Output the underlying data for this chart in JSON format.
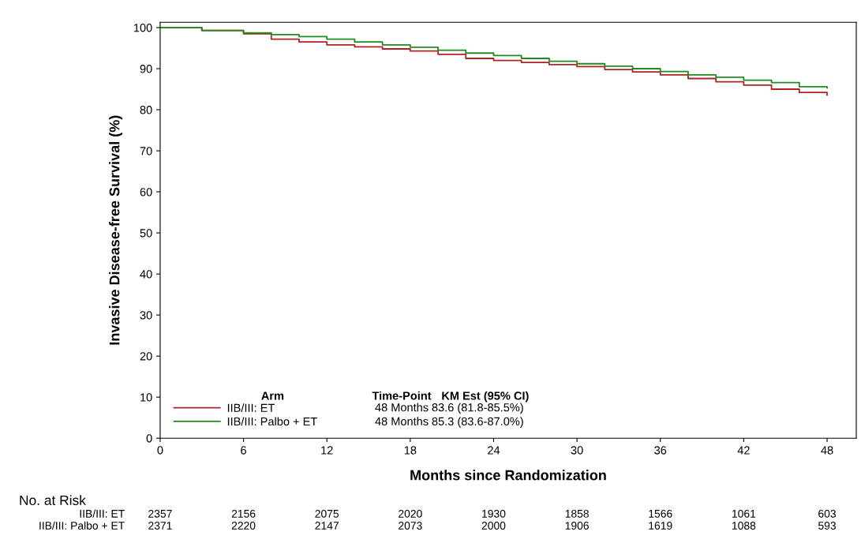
{
  "chart_data": {
    "type": "step",
    "xlabel": "Months since Randomization",
    "ylabel": "Invasive Disease-free Survival (%)",
    "xlim": [
      0,
      50.1
    ],
    "ylim": [
      0,
      101.3
    ],
    "xticks": [
      0,
      6,
      12,
      18,
      24,
      30,
      36,
      42,
      48
    ],
    "yticks": [
      0,
      10,
      20,
      30,
      40,
      50,
      60,
      70,
      80,
      90,
      100
    ],
    "grid": false,
    "legend": "bottom left",
    "marker": "none",
    "line_style": "solid",
    "series": [
      {
        "name": "IIB/III: ET",
        "color": "#b22222",
        "x": [
          0,
          3,
          6,
          8,
          10,
          12,
          14,
          16,
          18,
          20,
          22,
          24,
          26,
          28,
          30,
          32,
          34,
          36,
          38,
          40,
          42,
          44,
          46,
          48
        ],
        "values": [
          100,
          99.3,
          98.5,
          97.2,
          96.5,
          95.8,
          95.3,
          94.8,
          94.3,
          93.5,
          92.5,
          92.0,
          91.5,
          91.0,
          90.5,
          89.8,
          89.2,
          88.5,
          87.6,
          86.8,
          86.0,
          85.0,
          84.2,
          83.6
        ]
      },
      {
        "name": "IIB/III: Palbo + ET",
        "color": "#1e8c1e",
        "x": [
          0,
          3,
          6,
          8,
          10,
          12,
          14,
          16,
          18,
          20,
          22,
          24,
          26,
          28,
          30,
          32,
          34,
          36,
          38,
          40,
          42,
          44,
          46,
          48
        ],
        "values": [
          100,
          99.3,
          98.7,
          98.3,
          97.8,
          97.2,
          96.5,
          95.8,
          95.2,
          94.5,
          93.8,
          93.2,
          92.5,
          91.8,
          91.2,
          90.6,
          90.0,
          89.3,
          88.5,
          87.9,
          87.2,
          86.6,
          85.6,
          85.3
        ]
      }
    ],
    "annotations": [
      "Arm",
      "Time-Point",
      "KM Est (95% CI)",
      "48 Months",
      "83.6 (81.8-85.5%)",
      "48 Months",
      "85.3 (83.6-87.0%)",
      "No. at Risk",
      "2357",
      "2156",
      "2075",
      "2020",
      "1930",
      "1858",
      "1566",
      "1061",
      "603",
      "2371",
      "2220",
      "2147",
      "2073",
      "2000",
      "1906",
      "1619",
      "1088",
      "593"
    ]
  }
}
